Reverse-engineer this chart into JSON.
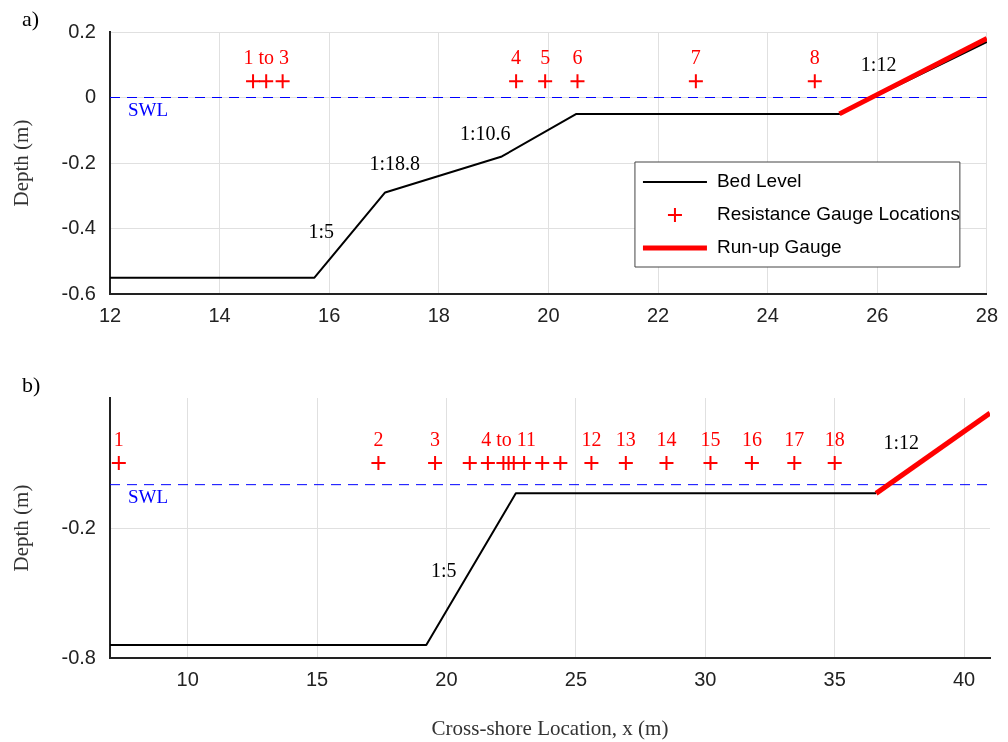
{
  "chart_data": [
    {
      "type": "line",
      "title": "a)",
      "ylabel": "Depth (m)",
      "xlim": [
        12,
        28
      ],
      "xticks": [
        12,
        14,
        16,
        18,
        20,
        22,
        24,
        26,
        28
      ],
      "ylim": [
        -0.6,
        0.2
      ],
      "yticks": [
        -0.6,
        -0.4,
        -0.2,
        0,
        0.2
      ],
      "grid": true,
      "legend": "bottom right",
      "series": [
        {
          "name": "Bed Level",
          "color": "#000000",
          "x": [
            12,
            15.73,
            17.02,
            19.15,
            20.51,
            25.31,
            28
          ],
          "values": [
            -0.55,
            -0.55,
            -0.29,
            -0.18,
            -0.05,
            -0.05,
            0.17
          ]
        },
        {
          "name": "Resistance Gauge Locations",
          "type": "scatter",
          "color": "#ff0000",
          "marker": "cross",
          "x": [
            14.61,
            14.85,
            15.15,
            19.41,
            19.94,
            20.53,
            22.69,
            24.86
          ],
          "values": [
            0.05,
            0.05,
            0.05,
            0.05,
            0.05,
            0.05,
            0.05,
            0.05
          ]
        },
        {
          "name": "Run-up Gauge",
          "color": "#ff0000",
          "x": [
            25.31,
            28
          ],
          "values": [
            -0.05,
            0.18
          ]
        }
      ],
      "ref_lines": [
        {
          "axis": "y",
          "value": 0,
          "label": "SWL",
          "color": "#0000ff",
          "line_style": "dashed"
        }
      ],
      "annotations": [
        {
          "text": "1 to 3",
          "x": 14.85,
          "y": 0.05
        },
        {
          "text": "4",
          "x": 19.41,
          "y": 0.05
        },
        {
          "text": "5",
          "x": 19.94,
          "y": 0.05
        },
        {
          "text": "6",
          "x": 20.53,
          "y": 0.05
        },
        {
          "text": "7",
          "x": 22.69,
          "y": 0.05
        },
        {
          "text": "8",
          "x": 24.86,
          "y": 0.05
        },
        {
          "text": "1:5",
          "x": 16.18,
          "y": -0.46
        },
        {
          "text": "1:18.8",
          "x": 17.75,
          "y": -0.25
        },
        {
          "text": "1:10.6",
          "x": 19.4,
          "y": -0.16
        },
        {
          "text": "1:12",
          "x": 26.44,
          "y": 0.05
        }
      ]
    },
    {
      "type": "line",
      "title": "b)",
      "xlabel": "Cross-shore Location, x (m)",
      "ylabel": "Depth (m)",
      "xlim": [
        7,
        41
      ],
      "xticks": [
        10,
        15,
        20,
        25,
        30,
        35,
        40
      ],
      "ylim": [
        -0.8,
        0.4
      ],
      "yticks": [
        -0.8,
        -0.2
      ],
      "grid": true,
      "series": [
        {
          "color": "#000000",
          "x": [
            7,
            19.22,
            22.68,
            36.6
          ],
          "values": [
            -0.74,
            -0.74,
            -0.04,
            -0.04
          ]
        },
        {
          "type": "scatter",
          "color": "#ff0000",
          "marker": "cross",
          "x": [
            7.34,
            17.37,
            19.56,
            20.9,
            21.6,
            22.2,
            22.4,
            22.6,
            23.0,
            23.7,
            24.4,
            25.6,
            26.93,
            28.5,
            30.2,
            31.8,
            33.44,
            35.0
          ],
          "values": [
            0.1,
            0.1,
            0.1,
            0.1,
            0.1,
            0.1,
            0.1,
            0.1,
            0.1,
            0.1,
            0.1,
            0.1,
            0.1,
            0.1,
            0.1,
            0.1,
            0.1,
            0.1
          ]
        },
        {
          "color": "#ff0000",
          "x": [
            36.6,
            41
          ],
          "values": [
            -0.04,
            0.33
          ]
        }
      ],
      "ref_lines": [
        {
          "axis": "y",
          "value": 0,
          "label": "SWL",
          "color": "#0000ff",
          "line_style": "dashed"
        }
      ],
      "annotations": [
        {
          "text": "1",
          "x": 7.34,
          "y": 0.1
        },
        {
          "text": "2",
          "x": 17.37,
          "y": 0.1
        },
        {
          "text": "3",
          "x": 19.56,
          "y": 0.1
        },
        {
          "text": "4 to 11",
          "x": 22.4,
          "y": 0.1
        },
        {
          "text": "12",
          "x": 25.6,
          "y": 0.1
        },
        {
          "text": "13",
          "x": 26.93,
          "y": 0.1
        },
        {
          "text": "14",
          "x": 28.5,
          "y": 0.1
        },
        {
          "text": "15",
          "x": 30.2,
          "y": 0.1
        },
        {
          "text": "16",
          "x": 31.8,
          "y": 0.1
        },
        {
          "text": "17",
          "x": 33.44,
          "y": 0.1
        },
        {
          "text": "18",
          "x": 35.0,
          "y": 0.1
        },
        {
          "text": "1:5",
          "x": 20.58,
          "y": -0.47
        },
        {
          "text": "1:12",
          "x": 38.45,
          "y": 0.12
        }
      ]
    }
  ]
}
